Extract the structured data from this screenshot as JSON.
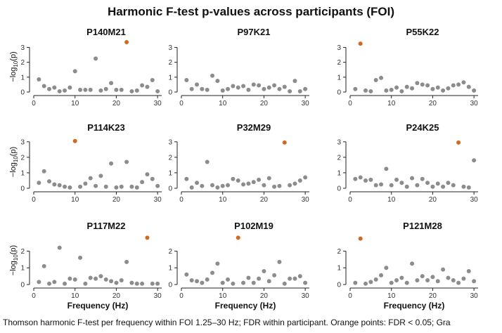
{
  "title": "Harmonic F-test p-values across participants (FOI)",
  "caption": "Thomson harmonic F-test per frequency within FOI 1.25–30 Hz; FDR within participant. Orange points: FDR < 0.05; Gra",
  "colors": {
    "normal": "#8c8c8c",
    "significant": "#d2691e",
    "axis": "#222222"
  },
  "chart_data": [
    {
      "type": "scatter",
      "panel": "P140M21",
      "xlabel": "",
      "ylabel": "−log10(p)",
      "xlim": [
        0,
        31
      ],
      "ylim": [
        0,
        3.4
      ],
      "xticks": [
        0,
        10,
        20,
        30
      ],
      "yticks": [
        0,
        1,
        2,
        3
      ],
      "x": [
        1.25,
        2.5,
        3.75,
        5,
        6.25,
        7.5,
        8.75,
        10,
        11.25,
        12.5,
        13.75,
        15,
        16.25,
        17.5,
        18.75,
        20,
        21.25,
        22.5,
        23.75,
        25,
        26.25,
        27.5,
        28.75,
        30
      ],
      "y": [
        0.85,
        0.4,
        0.2,
        0.3,
        0.05,
        0.1,
        0.3,
        1.4,
        0.15,
        0.15,
        0.15,
        2.25,
        0.1,
        0.2,
        0.6,
        0.15,
        0.15,
        3.35,
        0.05,
        0.1,
        0.45,
        0.35,
        0.8,
        0.05
      ],
      "significant": [
        false,
        false,
        false,
        false,
        false,
        false,
        false,
        false,
        false,
        false,
        false,
        false,
        false,
        false,
        false,
        false,
        false,
        true,
        false,
        false,
        false,
        false,
        false,
        false
      ]
    },
    {
      "type": "scatter",
      "panel": "P97K21",
      "xlabel": "",
      "ylabel": "",
      "xlim": [
        0,
        31
      ],
      "ylim": [
        0,
        3.4
      ],
      "xticks": [
        0,
        10,
        20,
        30
      ],
      "yticks": [
        0,
        1,
        2,
        3
      ],
      "x": [
        1.25,
        2.5,
        3.75,
        5,
        6.25,
        7.5,
        8.75,
        10,
        11.25,
        12.5,
        13.75,
        15,
        16.25,
        17.5,
        18.75,
        20,
        21.25,
        22.5,
        23.75,
        25,
        26.25,
        27.5,
        28.75,
        30
      ],
      "y": [
        0.8,
        0.2,
        0.5,
        0.2,
        0.15,
        1.1,
        0.75,
        0.1,
        0.2,
        0.4,
        0.3,
        0.4,
        0.15,
        0.5,
        0.45,
        0.2,
        0.3,
        0.45,
        0.2,
        0.35,
        0.05,
        0.75,
        0.05,
        0.2
      ],
      "significant": [
        false,
        false,
        false,
        false,
        false,
        false,
        false,
        false,
        false,
        false,
        false,
        false,
        false,
        false,
        false,
        false,
        false,
        false,
        false,
        false,
        false,
        false,
        false,
        false
      ]
    },
    {
      "type": "scatter",
      "panel": "P55K22",
      "xlabel": "",
      "ylabel": "",
      "xlim": [
        0,
        31
      ],
      "ylim": [
        0,
        3.4
      ],
      "xticks": [
        0,
        10,
        20,
        30
      ],
      "yticks": [
        0,
        1,
        2,
        3
      ],
      "x": [
        1.25,
        2.5,
        3.75,
        5,
        6.25,
        7.5,
        8.75,
        10,
        11.25,
        12.5,
        13.75,
        15,
        16.25,
        17.5,
        18.75,
        20,
        21.25,
        22.5,
        23.75,
        25,
        26.25,
        27.5,
        28.75,
        30
      ],
      "y": [
        0.2,
        3.25,
        0.1,
        0.05,
        0.8,
        0.95,
        0.1,
        0.15,
        0.3,
        0.05,
        0.35,
        0.25,
        0.6,
        0.5,
        0.45,
        0.2,
        0.3,
        0.1,
        0.25,
        0.45,
        0.5,
        0.65,
        0.35,
        0.1
      ],
      "significant": [
        false,
        true,
        false,
        false,
        false,
        false,
        false,
        false,
        false,
        false,
        false,
        false,
        false,
        false,
        false,
        false,
        false,
        false,
        false,
        false,
        false,
        false,
        false,
        false
      ]
    },
    {
      "type": "scatter",
      "panel": "P114K23",
      "xlabel": "",
      "ylabel": "−log10(p)",
      "xlim": [
        0,
        31
      ],
      "ylim": [
        0,
        3.4
      ],
      "xticks": [
        0,
        10,
        20,
        30
      ],
      "yticks": [
        0,
        1,
        2,
        3
      ],
      "x": [
        1.25,
        2.5,
        3.75,
        5,
        6.25,
        7.5,
        8.75,
        10,
        11.25,
        12.5,
        13.75,
        15,
        16.25,
        17.5,
        18.75,
        20,
        21.25,
        22.5,
        23.75,
        25,
        26.25,
        27.5,
        28.75,
        30
      ],
      "y": [
        0.35,
        1.1,
        0.45,
        0.25,
        0.2,
        0.1,
        0.05,
        3.05,
        0.1,
        0.3,
        0.65,
        0.15,
        0.8,
        0.1,
        1.6,
        0.05,
        0.1,
        1.7,
        0.1,
        0.05,
        0.4,
        0.9,
        0.6,
        0.15
      ],
      "significant": [
        false,
        false,
        false,
        false,
        false,
        false,
        false,
        true,
        false,
        false,
        false,
        false,
        false,
        false,
        false,
        false,
        false,
        false,
        false,
        false,
        false,
        false,
        false,
        false
      ]
    },
    {
      "type": "scatter",
      "panel": "P32M29",
      "xlabel": "",
      "ylabel": "",
      "xlim": [
        0,
        31
      ],
      "ylim": [
        0,
        3.4
      ],
      "xticks": [
        0,
        10,
        20,
        30
      ],
      "yticks": [
        0,
        1,
        2,
        3
      ],
      "x": [
        1.25,
        2.5,
        3.75,
        5,
        6.25,
        7.5,
        8.75,
        10,
        11.25,
        12.5,
        13.75,
        15,
        16.25,
        17.5,
        18.75,
        20,
        21.25,
        22.5,
        23.75,
        25,
        26.25,
        27.5,
        28.75,
        30
      ],
      "y": [
        0.6,
        0.05,
        0.35,
        0.15,
        1.7,
        0.2,
        0.05,
        0.15,
        0.2,
        0.6,
        0.5,
        0.25,
        0.3,
        0.4,
        0.55,
        0.2,
        0.65,
        0.1,
        0.15,
        2.95,
        0.2,
        0.3,
        0.5,
        0.7
      ],
      "significant": [
        false,
        false,
        false,
        false,
        false,
        false,
        false,
        false,
        false,
        false,
        false,
        false,
        false,
        false,
        false,
        false,
        false,
        false,
        false,
        true,
        false,
        false,
        false,
        false
      ]
    },
    {
      "type": "scatter",
      "panel": "P24K25",
      "xlabel": "",
      "ylabel": "",
      "xlim": [
        0,
        31
      ],
      "ylim": [
        0,
        3.4
      ],
      "xticks": [
        0,
        10,
        20,
        30
      ],
      "yticks": [
        0,
        1,
        2,
        3
      ],
      "x": [
        1.25,
        2.5,
        3.75,
        5,
        6.25,
        7.5,
        8.75,
        10,
        11.25,
        12.5,
        13.75,
        15,
        16.25,
        17.5,
        18.75,
        20,
        21.25,
        22.5,
        23.75,
        25,
        26.25,
        27.5,
        28.75,
        30
      ],
      "y": [
        0.6,
        0.7,
        0.5,
        0.55,
        0.2,
        0.25,
        1.25,
        0.2,
        0.55,
        0.35,
        0.1,
        0.65,
        0.2,
        0.6,
        0.35,
        0.1,
        0.3,
        0.1,
        0.35,
        0.2,
        2.95,
        0.1,
        0.05,
        1.8
      ],
      "significant": [
        false,
        false,
        false,
        false,
        false,
        false,
        false,
        false,
        false,
        false,
        false,
        false,
        false,
        false,
        false,
        false,
        false,
        false,
        false,
        false,
        true,
        false,
        false,
        false
      ]
    },
    {
      "type": "scatter",
      "panel": "P117M22",
      "xlabel": "Frequency (Hz)",
      "ylabel": "−log10(p)",
      "xlim": [
        0,
        31
      ],
      "ylim": [
        0,
        2.9
      ],
      "xticks": [
        0,
        10,
        20,
        30
      ],
      "yticks": [
        0,
        1,
        2
      ],
      "x": [
        1.25,
        2.5,
        3.75,
        5,
        6.25,
        7.5,
        8.75,
        10,
        11.25,
        12.5,
        13.75,
        15,
        16.25,
        17.5,
        18.75,
        20,
        21.25,
        22.5,
        23.75,
        25,
        26.25,
        27.5,
        28.75,
        30
      ],
      "y": [
        0.15,
        1.1,
        0.05,
        0.15,
        2.2,
        0.05,
        0.35,
        0.3,
        1.6,
        0.05,
        0.4,
        0.35,
        0.5,
        0.3,
        0.2,
        0.1,
        0.25,
        1.35,
        0.1,
        0.05,
        0.05,
        2.8,
        0.05,
        0.05
      ],
      "significant": [
        false,
        false,
        false,
        false,
        false,
        false,
        false,
        false,
        false,
        false,
        false,
        false,
        false,
        false,
        false,
        false,
        false,
        false,
        false,
        false,
        false,
        true,
        false,
        false
      ]
    },
    {
      "type": "scatter",
      "panel": "P102M19",
      "xlabel": "Frequency (Hz)",
      "ylabel": "",
      "xlim": [
        0,
        31
      ],
      "ylim": [
        0,
        2.9
      ],
      "xticks": [
        0,
        10,
        20,
        30
      ],
      "yticks": [
        0,
        1,
        2
      ],
      "x": [
        1.25,
        2.5,
        3.75,
        5,
        6.25,
        7.5,
        8.75,
        10,
        11.25,
        12.5,
        13.75,
        15,
        16.25,
        17.5,
        18.75,
        20,
        21.25,
        22.5,
        23.75,
        25,
        26.25,
        27.5,
        28.75,
        30
      ],
      "y": [
        0.6,
        0.25,
        0.2,
        0.1,
        0.3,
        0.7,
        1.25,
        0.1,
        0.3,
        0.05,
        2.8,
        0.1,
        0.4,
        0.1,
        0.35,
        0.8,
        0.2,
        0.55,
        1.35,
        0.05,
        0.35,
        0.35,
        0.5,
        0.1
      ],
      "significant": [
        false,
        false,
        false,
        false,
        false,
        false,
        false,
        false,
        false,
        false,
        true,
        false,
        false,
        false,
        false,
        false,
        false,
        false,
        false,
        false,
        false,
        false,
        false,
        false
      ]
    },
    {
      "type": "scatter",
      "panel": "P121M28",
      "xlabel": "Frequency (Hz)",
      "ylabel": "",
      "xlim": [
        0,
        31
      ],
      "ylim": [
        0,
        2.9
      ],
      "xticks": [
        0,
        10,
        20,
        30
      ],
      "yticks": [
        0,
        1,
        2
      ],
      "x": [
        1.25,
        2.5,
        3.75,
        5,
        6.25,
        7.5,
        8.75,
        10,
        11.25,
        12.5,
        13.75,
        15,
        16.25,
        17.5,
        18.75,
        20,
        21.25,
        22.5,
        23.75,
        25,
        26.25,
        27.5,
        28.75,
        30
      ],
      "y": [
        0.1,
        2.75,
        0.05,
        0.15,
        0.3,
        0.55,
        1.0,
        0.1,
        0.25,
        0.4,
        0.1,
        1.25,
        0.25,
        0.5,
        0.25,
        0.45,
        0.2,
        0.9,
        0.4,
        0.25,
        0.1,
        0.35,
        0.8,
        0.2
      ],
      "significant": [
        false,
        true,
        false,
        false,
        false,
        false,
        false,
        false,
        false,
        false,
        false,
        false,
        false,
        false,
        false,
        false,
        false,
        false,
        false,
        false,
        false,
        false,
        false,
        false
      ]
    }
  ]
}
